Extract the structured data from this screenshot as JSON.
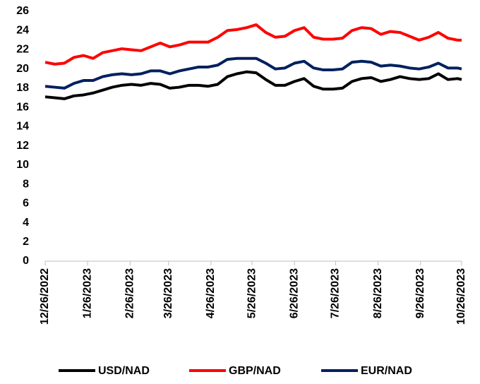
{
  "chart_data": {
    "type": "line",
    "x": [
      "12/26/2022",
      "1/2/2023",
      "1/9/2023",
      "1/16/2023",
      "1/23/2023",
      "1/30/2023",
      "2/6/2023",
      "2/13/2023",
      "2/20/2023",
      "2/27/2023",
      "3/6/2023",
      "3/13/2023",
      "3/20/2023",
      "3/27/2023",
      "4/3/2023",
      "4/10/2023",
      "4/17/2023",
      "4/24/2023",
      "5/1/2023",
      "5/8/2023",
      "5/15/2023",
      "5/22/2023",
      "5/29/2023",
      "6/5/2023",
      "6/12/2023",
      "6/19/2023",
      "6/26/2023",
      "7/3/2023",
      "7/10/2023",
      "7/17/2023",
      "7/24/2023",
      "7/31/2023",
      "8/7/2023",
      "8/14/2023",
      "8/21/2023",
      "8/28/2023",
      "9/4/2023",
      "9/11/2023",
      "9/18/2023",
      "9/25/2023",
      "10/2/2023",
      "10/9/2023",
      "10/16/2023",
      "10/23/2023",
      "10/26/2023"
    ],
    "series": [
      {
        "name": "USD/NAD",
        "color": "#000000",
        "values": [
          17.1,
          17.0,
          16.9,
          17.2,
          17.3,
          17.5,
          17.8,
          18.1,
          18.3,
          18.4,
          18.3,
          18.5,
          18.4,
          18.0,
          18.1,
          18.3,
          18.3,
          18.2,
          18.4,
          19.2,
          19.5,
          19.7,
          19.6,
          18.9,
          18.3,
          18.3,
          18.7,
          19.0,
          18.2,
          17.9,
          17.9,
          18.0,
          18.7,
          19.0,
          19.1,
          18.7,
          18.9,
          19.2,
          19.0,
          18.9,
          19.0,
          19.5,
          18.9,
          19.0,
          18.9
        ]
      },
      {
        "name": "GBP/NAD",
        "color": "#ff0000",
        "values": [
          20.7,
          20.5,
          20.6,
          21.2,
          21.4,
          21.1,
          21.7,
          21.9,
          22.1,
          22.0,
          21.9,
          22.3,
          22.7,
          22.3,
          22.5,
          22.8,
          22.8,
          22.8,
          23.3,
          24.0,
          24.1,
          24.3,
          24.6,
          23.8,
          23.3,
          23.4,
          24.0,
          24.3,
          23.3,
          23.1,
          23.1,
          23.2,
          24.0,
          24.3,
          24.2,
          23.6,
          23.9,
          23.8,
          23.4,
          23.0,
          23.3,
          23.8,
          23.2,
          23.0,
          23.0
        ]
      },
      {
        "name": "EUR/NAD",
        "color": "#002060",
        "values": [
          18.2,
          18.1,
          18.0,
          18.5,
          18.8,
          18.8,
          19.2,
          19.4,
          19.5,
          19.4,
          19.5,
          19.8,
          19.8,
          19.5,
          19.8,
          20.0,
          20.2,
          20.2,
          20.4,
          21.0,
          21.1,
          21.1,
          21.1,
          20.6,
          20.0,
          20.1,
          20.6,
          20.8,
          20.1,
          19.9,
          19.9,
          20.0,
          20.7,
          20.8,
          20.7,
          20.3,
          20.4,
          20.3,
          20.1,
          20.0,
          20.2,
          20.6,
          20.1,
          20.1,
          20.0
        ]
      }
    ],
    "xlim": [
      "12/26/2022",
      "10/26/2023"
    ],
    "xticks": [
      "12/26/2022",
      "1/26/2023",
      "2/26/2023",
      "3/26/2023",
      "4/26/2023",
      "5/26/2023",
      "6/26/2023",
      "7/26/2023",
      "8/26/2023",
      "9/26/2023",
      "10/26/2023"
    ],
    "ylim": [
      0,
      26
    ],
    "yticks": [
      0,
      2,
      4,
      6,
      8,
      10,
      12,
      14,
      16,
      18,
      20,
      22,
      24,
      26
    ],
    "grid": false,
    "legend": "bottom"
  }
}
